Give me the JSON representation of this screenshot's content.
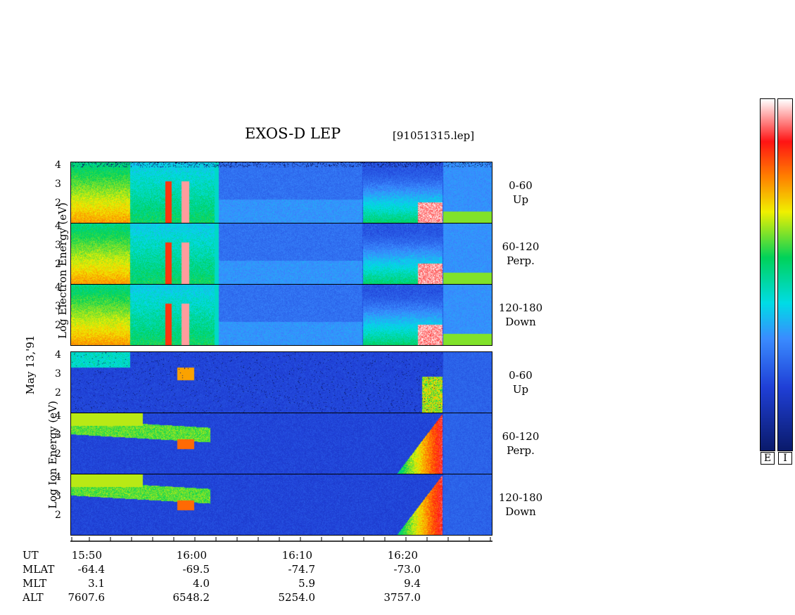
{
  "header": {
    "title": "EXOS-D LEP",
    "filename": "[91051315.lep]"
  },
  "date_label": "May 13,'91",
  "electron_ylabel": "Log  Electron  Energy  (eV)",
  "ion_ylabel": "Log   Ion  Energy  (eV)",
  "colorbar": {
    "labels": [
      "E",
      "I"
    ]
  },
  "chart_data": {
    "type": "heatmap",
    "title": "EXOS-D LEP",
    "x_axis": {
      "ticks": [
        "15:50",
        "16:00",
        "16:10",
        "16:20"
      ]
    },
    "y_ticks": [
      "4",
      "3",
      "2"
    ],
    "panels": [
      {
        "species": "Electron",
        "angle": "0-60",
        "dir": "Up"
      },
      {
        "species": "Electron",
        "angle": "60-120",
        "dir": "Perp."
      },
      {
        "species": "Electron",
        "angle": "120-180",
        "dir": "Down"
      },
      {
        "species": "Ion",
        "angle": "0-60",
        "dir": "Up"
      },
      {
        "species": "Ion",
        "angle": "60-120",
        "dir": "Perp."
      },
      {
        "species": "Ion",
        "angle": "120-180",
        "dir": "Down"
      }
    ],
    "orbit": {
      "rows": [
        "UT",
        "MLAT",
        "MLT",
        "ALT"
      ],
      "columns": [
        {
          "UT": "15:50",
          "MLAT": "-64.4",
          "MLT": "3.1",
          "ALT": "7607.6"
        },
        {
          "UT": "16:00",
          "MLAT": "-69.5",
          "MLT": "4.0",
          "ALT": "6548.2"
        },
        {
          "UT": "16:10",
          "MLAT": "-74.7",
          "MLT": "5.9",
          "ALT": "5254.0"
        },
        {
          "UT": "16:20",
          "MLAT": "-73.0",
          "MLT": "9.4",
          "ALT": "3757.0"
        }
      ]
    },
    "colors": {
      "background": "#1f3fd6",
      "scale": [
        "#0a1a6a",
        "#1f3fd6",
        "#3aa0ff",
        "#00e8e8",
        "#00d060",
        "#f0f000",
        "#ff8000",
        "#ff1010",
        "#ffffff"
      ]
    }
  }
}
